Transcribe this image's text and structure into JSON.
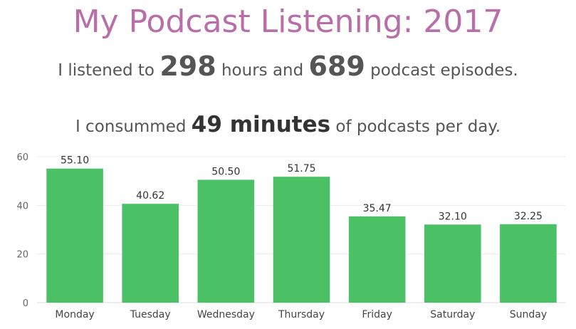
{
  "header": {
    "title": "My Podcast Listening: 2017",
    "line1_prefix": "I listened to",
    "hours": "298",
    "line1_mid": "hours and",
    "episodes": "689",
    "line1_suffix": "podcast episodes.",
    "line2_prefix": "I consummed",
    "minutes": "49 minutes",
    "line2_suffix": "of podcasts per day."
  },
  "colors": {
    "title": "#b86ea6",
    "bar": "#4cc064",
    "text": "#555555"
  },
  "chart_data": {
    "type": "bar",
    "categories": [
      "Monday",
      "Tuesday",
      "Wednesday",
      "Thursday",
      "Friday",
      "Saturday",
      "Sunday"
    ],
    "values": [
      55.1,
      40.62,
      50.5,
      51.75,
      35.47,
      32.1,
      32.25
    ],
    "data_labels": [
      "55.10",
      "40.62",
      "50.50",
      "51.75",
      "35.47",
      "32.10",
      "32.25"
    ],
    "yticks": [
      0,
      20,
      40,
      60
    ],
    "ylim": [
      0,
      60
    ],
    "grid": true
  }
}
